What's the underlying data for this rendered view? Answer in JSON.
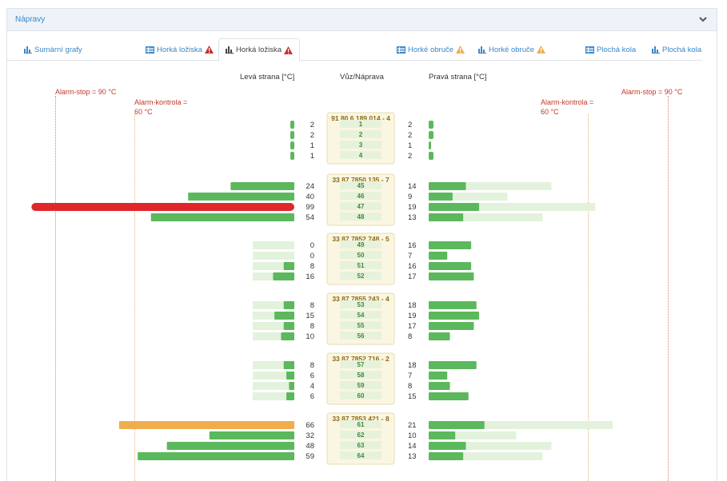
{
  "panel": {
    "title": "Nápravy"
  },
  "tabs": [
    {
      "label": "Sumární grafy",
      "icon": "bar-chart-icon",
      "warn": "",
      "active": false
    },
    {
      "label": "Horká ložiska",
      "icon": "table-icon",
      "warn": "warning-red-icon",
      "active": false
    },
    {
      "label": "Horká ložiska",
      "icon": "bar-chart-icon",
      "warn": "warning-red-icon",
      "active": true
    },
    {
      "label": "Horké obruče",
      "icon": "table-icon",
      "warn": "warning-yellow-icon",
      "active": false
    },
    {
      "label": "Horké obruče",
      "icon": "bar-chart-icon",
      "warn": "warning-yellow-icon",
      "active": false
    },
    {
      "label": "Plochá kola",
      "icon": "table-icon",
      "warn": "",
      "active": false
    },
    {
      "label": "Plochá kola",
      "icon": "bar-chart-icon",
      "warn": "",
      "active": false
    }
  ],
  "columns": {
    "left": "Levá strana [°C]",
    "middle": "Vůz/Náprava",
    "right": "Pravá strana [°C]"
  },
  "alarms": {
    "stop_left": "Alarm-stop = 90 °C",
    "stop_right": "Alarm-stop = 90 °C",
    "kontrola_left": [
      "Alarm-kontrola =",
      "60 °C"
    ],
    "kontrola_right": [
      "Alarm-kontrola =",
      "60 °C"
    ]
  },
  "colors": {
    "green": "#5cb85c",
    "green_light": "#e3f2dc",
    "red": "#e0262b",
    "orange": "#f0ad4e",
    "link": "#3a87c8"
  },
  "chart_data": {
    "type": "bar",
    "alarm_stop": 90,
    "alarm_kontrola": 60,
    "wagons": [
      {
        "id": "91 80 6 189 014 - 4",
        "axles": [
          {
            "n": "1",
            "left": 2,
            "right": 2
          },
          {
            "n": "2",
            "left": 2,
            "right": 2
          },
          {
            "n": "3",
            "left": 1,
            "right": 1
          },
          {
            "n": "4",
            "left": 1,
            "right": 2
          }
        ]
      },
      {
        "id": "33 87 7850 135 - 7",
        "axles": [
          {
            "n": "45",
            "left": 24,
            "right": 14
          },
          {
            "n": "46",
            "left": 40,
            "right": 9
          },
          {
            "n": "47",
            "left": 99,
            "right": 19
          },
          {
            "n": "48",
            "left": 54,
            "right": 13
          }
        ]
      },
      {
        "id": "33 87 7852 748 - 5",
        "axles": [
          {
            "n": "49",
            "left": 0,
            "right": 16
          },
          {
            "n": "50",
            "left": 0,
            "right": 7
          },
          {
            "n": "51",
            "left": 8,
            "right": 16
          },
          {
            "n": "52",
            "left": 16,
            "right": 17
          }
        ]
      },
      {
        "id": "33 87 7855 243 - 4",
        "axles": [
          {
            "n": "53",
            "left": 8,
            "right": 18
          },
          {
            "n": "54",
            "left": 15,
            "right": 19
          },
          {
            "n": "55",
            "left": 8,
            "right": 17
          },
          {
            "n": "56",
            "left": 10,
            "right": 8
          }
        ]
      },
      {
        "id": "33 87 7852 716 - 2",
        "axles": [
          {
            "n": "57",
            "left": 8,
            "right": 18
          },
          {
            "n": "58",
            "left": 6,
            "right": 7
          },
          {
            "n": "59",
            "left": 4,
            "right": 8
          },
          {
            "n": "60",
            "left": 6,
            "right": 15
          }
        ]
      },
      {
        "id": "33 87 7853 421 - 8",
        "axles": [
          {
            "n": "61",
            "left": 66,
            "right": 21
          },
          {
            "n": "62",
            "left": 32,
            "right": 10
          },
          {
            "n": "63",
            "left": 48,
            "right": 14
          },
          {
            "n": "64",
            "left": 59,
            "right": 13
          }
        ]
      }
    ]
  }
}
